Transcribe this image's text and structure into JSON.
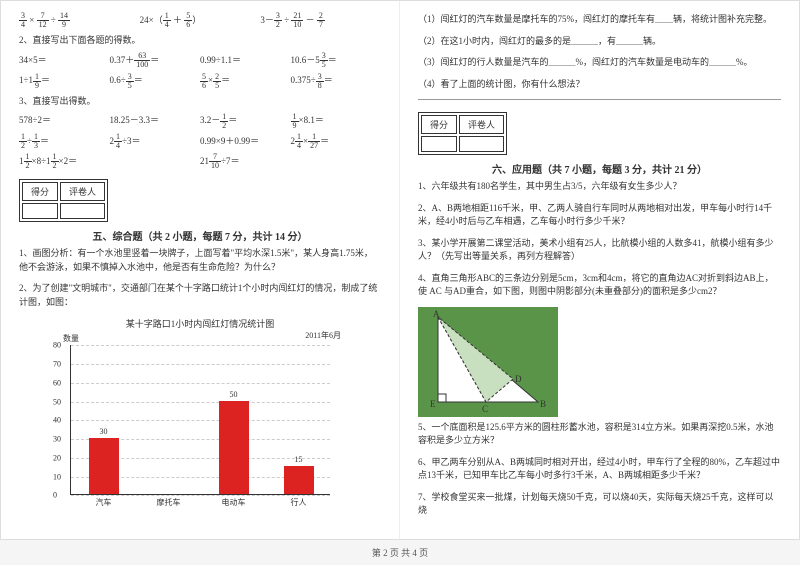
{
  "footer": "第 2 页  共 4 页",
  "left": {
    "expr_block1": [
      "3/4 × 7/12 ÷ 14/9",
      "24×（1/4 ＋ 5/6）",
      "3－3/2 ÷ 21/10 － 2/7"
    ],
    "q2_title": "2、直接写出下面各题的得数。",
    "q2_rows": [
      [
        "34×5＝",
        "0.37＋ 63/100 ＝",
        "0.99÷1.1＝",
        "10.6－5 3/5 ＝"
      ],
      [
        "1÷1 1/9 ＝",
        "0.6÷ 3/5 ＝",
        "5/6 × 2/5 ＝",
        "0.375÷ 3/8 ＝"
      ]
    ],
    "q3_title": "3、直接写出得数。",
    "q3_rows": [
      [
        "578÷2＝",
        "18.25－3.3＝",
        "3.2－ 1/2 ＝",
        "1/9 ×8.1＝"
      ],
      [
        "1/2 ÷ 1/3 ＝",
        "2 1/4 ÷3＝",
        "0.99×9＋0.99＝",
        "2 1/4 × 1/27 ＝"
      ],
      [
        "1 1/2 ×8÷1 1/2 ×2＝",
        "",
        "21 7/10 ÷7＝",
        ""
      ]
    ],
    "score_labels": [
      "得分",
      "评卷人"
    ],
    "section5_title": "五、综合题（共 2 小题，每题 7 分，共计 14 分）",
    "s5_q1": "1、画图分析：有一个水池里竖着一块牌子，上面写着\"平均水深1.5米\"，某人身高1.75米，他不会游泳，如果不慎掉入水池中，他是否有生命危险？为什么？",
    "s5_q2": "2、为了创建\"文明城市\"，交通部门在某个十字路口统计1个小时内闯红灯的情况，制成了统计图，如图：",
    "chart": {
      "title": "某十字路口1小时内闯红灯情况统计图",
      "date": "2011年6月",
      "y_title": "数量",
      "y_max": 80,
      "y_ticks": [
        0,
        10,
        20,
        30,
        40,
        50,
        60,
        70,
        80
      ],
      "bars": [
        {
          "label": "汽车",
          "value": 30,
          "color": "#d22"
        },
        {
          "label": "摩托车",
          "value": null,
          "color": "#d22"
        },
        {
          "label": "电动车",
          "value": 50,
          "color": "#d22"
        },
        {
          "label": "行人",
          "value": 15,
          "color": "#d22"
        }
      ]
    }
  },
  "right": {
    "sub_q": [
      "（1）闯红灯的汽车数量是摩托车的75%，闯红灯的摩托车有＿＿辆，将统计图补充完整。",
      "（2）在这1小时内，闯红灯的最多的是＿＿＿，有＿＿＿辆。",
      "（3）闯红灯的行人数量是汽车的＿＿＿%，闯红灯的汽车数量是电动车的＿＿＿%。",
      "（4）看了上面的统计图，你有什么想法？"
    ],
    "score_labels": [
      "得分",
      "评卷人"
    ],
    "section6_title": "六、应用题（共 7 小题，每题 3 分，共计 21 分）",
    "s6": [
      "1、六年级共有180名学生，其中男生占3/5，六年级有女生多少人？",
      "2、A、B两地相距116千米，甲、乙两人骑自行车同时从两地相对出发，甲车每小时行14千米，经4小时后与乙车相遇，乙车每小时行多少千米？",
      "3、某小学开展第二课堂活动，美术小组有25人，比航模小组的人数多41，航模小组有多少人？（先写出等量关系，再列方程解答）",
      "4、直角三角形ABC的三条边分别是5cm，3cm和4cm，将它的直角边AC对折到斜边AB上，使 AC 与AD重合，如下图，则图中阴影部分(未重叠部分)的面积是多少cm2？",
      "5、一个底面积是125.6平方米的圆柱形蓄水池，容积是314立方米。如果再深挖0.5米，水池容积是多少立方米？",
      "6、甲乙两车分别从A、B两城同时相对开出，经过4小时，甲车行了全程的80%，乙车超过中点13千米，已知甲车比乙车每小时多行3千米，A、B两城相距多少千米？",
      "7、学校食堂买来一批煤，计划每天烧50千克，可以烧40天，实际每天烧25千克，这样可以烧"
    ],
    "triangle": {
      "bg": "#5a9448",
      "points_outer": "A E C D B",
      "vertices": {
        "A": "A",
        "E": "E",
        "C": "C",
        "D": "D",
        "B": "B"
      }
    }
  }
}
